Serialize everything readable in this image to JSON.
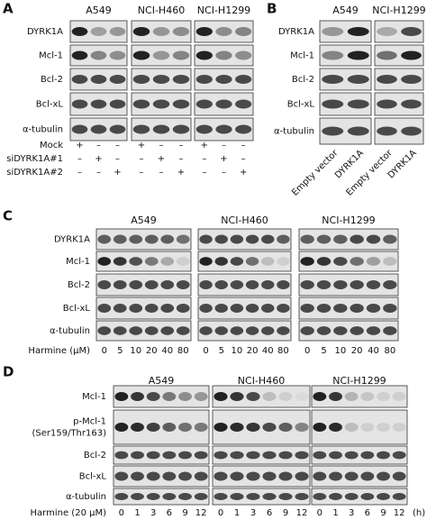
{
  "panels": [
    {
      "label": "A",
      "cell_lines": [
        "A549",
        "NCI-H460",
        "NCI-H1299"
      ],
      "rows": [
        [
          "DYRK1A"
        ],
        [
          "Mcl-1"
        ],
        [
          "Bcl-2"
        ],
        [
          "Bcl-xL"
        ],
        [
          "α-tubulin"
        ]
      ],
      "conditions": [
        {
          "label": "Mock",
          "marks": [
            "+",
            "–",
            "–",
            "+",
            "–",
            "–",
            "+",
            "–",
            "–"
          ]
        },
        {
          "label": "siDYRK1A#1",
          "marks": [
            "–",
            "+",
            "–",
            "–",
            "+",
            "–",
            "–",
            "+",
            "–"
          ]
        },
        {
          "label": "siDYRK1A#2",
          "marks": [
            "–",
            "–",
            "+",
            "–",
            "–",
            "+",
            "–",
            "–",
            "+"
          ]
        }
      ]
    },
    {
      "label": "B",
      "cell_lines": [
        "A549",
        "NCI-H1299"
      ],
      "rows": [
        [
          "DYRK1A"
        ],
        [
          "Mcl-1"
        ],
        [
          "Bcl-2"
        ],
        [
          "Bcl-xL"
        ],
        [
          "α-tubulin"
        ]
      ],
      "lanes": [
        "Empty vector",
        "DYRK1A",
        "Empty vector",
        "DYRK1A"
      ]
    },
    {
      "label": "C",
      "cell_lines": [
        "A549",
        "NCI-H460",
        "NCI-H1299"
      ],
      "rows": [
        [
          "DYRK1A"
        ],
        [
          "Mcl-1"
        ],
        [
          "Bcl-2"
        ],
        [
          "Bcl-xL"
        ],
        [
          "α-tubulin"
        ]
      ],
      "treatment": "Harmine (μM)",
      "lanes": [
        "0",
        "5",
        "10",
        "20",
        "40",
        "80",
        "0",
        "5",
        "10",
        "20",
        "40",
        "80",
        "0",
        "5",
        "10",
        "20",
        "40",
        "80"
      ]
    },
    {
      "label": "D",
      "cell_lines": [
        "A549",
        "NCI-H460",
        "NCI-H1299"
      ],
      "rows": [
        [
          "Mcl-1"
        ],
        [
          "p-Mcl-1",
          "(Ser159/Thr163)"
        ],
        [
          "Bcl-2"
        ],
        [
          "Bcl-xL"
        ],
        [
          "α-tubulin"
        ]
      ],
      "treatment": "Harmine (20 μM)",
      "lanes": [
        "0",
        "1",
        "3",
        "6",
        "9",
        "12",
        "0",
        "1",
        "3",
        "6",
        "9",
        "12",
        "0",
        "1",
        "3",
        "6",
        "9",
        "12"
      ],
      "unit": "(h)"
    }
  ]
}
